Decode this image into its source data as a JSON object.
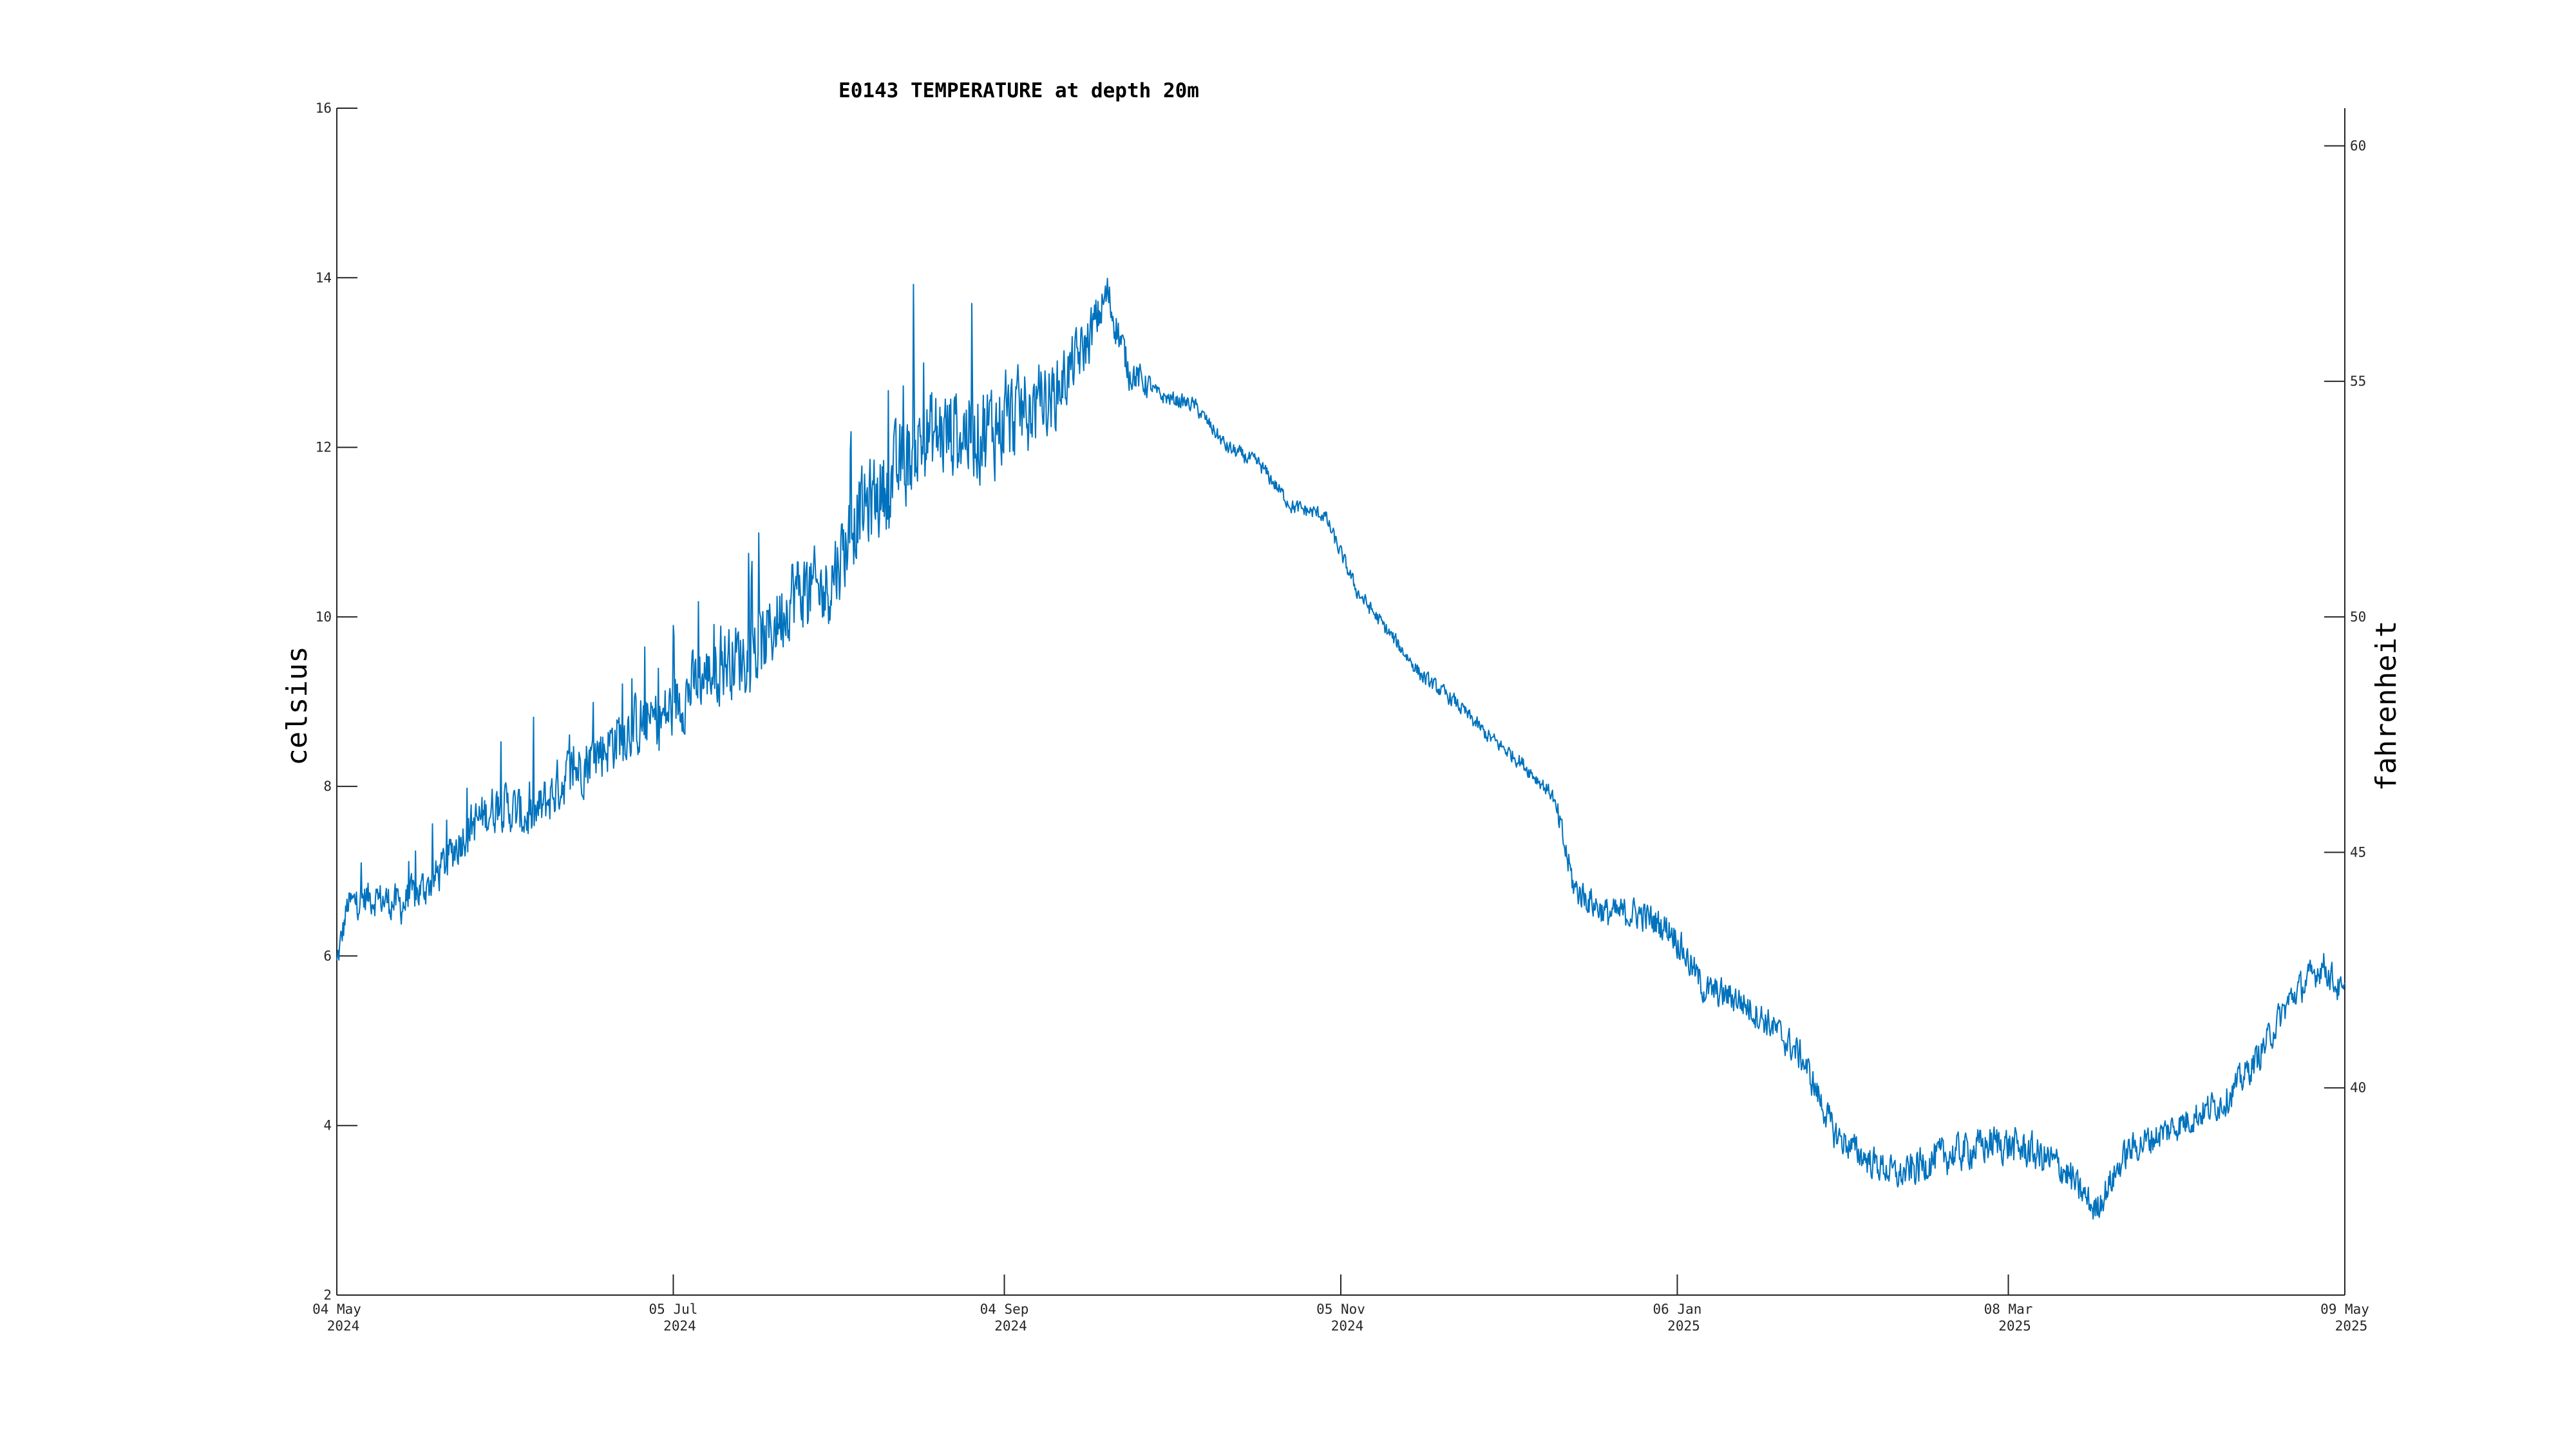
{
  "chart_data": {
    "type": "line",
    "title": "E0143 TEMPERATURE at depth 20m",
    "ylabel": "celsius",
    "ylabel_right": "fahrenheit",
    "xlabel": "",
    "x_range": [
      "2024-05-04",
      "2025-05-09"
    ],
    "ylim": [
      2,
      16
    ],
    "ylim_right": [
      35.6,
      60.8
    ],
    "grid": false,
    "line_color": "#0072BD",
    "y_ticks": [
      "2",
      "4",
      "6",
      "8",
      "10",
      "12",
      "14",
      "16"
    ],
    "y_right_ticks": [
      "40",
      "45",
      "50",
      "55",
      "60"
    ],
    "x_ticks": [
      {
        "date": "2024-05-04",
        "line1": "04 May",
        "line2": "2024"
      },
      {
        "date": "2024-07-05",
        "line1": "05 Jul",
        "line2": "2024"
      },
      {
        "date": "2024-09-04",
        "line1": "04 Sep",
        "line2": "2024"
      },
      {
        "date": "2024-11-05",
        "line1": "05 Nov",
        "line2": "2024"
      },
      {
        "date": "2025-01-06",
        "line1": "06 Jan",
        "line2": "2025"
      },
      {
        "date": "2025-03-08",
        "line1": "08 Mar",
        "line2": "2025"
      },
      {
        "date": "2025-05-09",
        "line1": "09 May",
        "line2": "2025"
      }
    ],
    "series": [
      {
        "values": [
          [
            "2024-05-04",
            5.9
          ],
          [
            "2024-05-06",
            6.6
          ],
          [
            "2024-05-10",
            6.7
          ],
          [
            "2024-05-16",
            6.6
          ],
          [
            "2024-05-22",
            6.9
          ],
          [
            "2024-05-28",
            7.5
          ],
          [
            "2024-06-03",
            7.8
          ],
          [
            "2024-06-09",
            7.6
          ],
          [
            "2024-06-15",
            8.1
          ],
          [
            "2024-06-21",
            8.4
          ],
          [
            "2024-06-27",
            8.7
          ],
          [
            "2024-07-03",
            8.8
          ],
          [
            "2024-07-09",
            9.2
          ],
          [
            "2024-07-15",
            9.5
          ],
          [
            "2024-07-21",
            9.6
          ],
          [
            "2024-07-27",
            10.3
          ],
          [
            "2024-08-02",
            10.3
          ],
          [
            "2024-08-08",
            11.2
          ],
          [
            "2024-08-14",
            11.6
          ],
          [
            "2024-08-20",
            12.1
          ],
          [
            "2024-08-26",
            12.2
          ],
          [
            "2024-09-01",
            12.2
          ],
          [
            "2024-09-07",
            12.4
          ],
          [
            "2024-09-13",
            12.6
          ],
          [
            "2024-09-19",
            13.2
          ],
          [
            "2024-09-23",
            13.8
          ],
          [
            "2024-09-27",
            12.9
          ],
          [
            "2024-10-03",
            12.6
          ],
          [
            "2024-10-09",
            12.5
          ],
          [
            "2024-10-15",
            12.0
          ],
          [
            "2024-10-21",
            11.8
          ],
          [
            "2024-10-27",
            11.3
          ],
          [
            "2024-11-02",
            11.2
          ],
          [
            "2024-11-08",
            10.3
          ],
          [
            "2024-11-14",
            9.8
          ],
          [
            "2024-11-20",
            9.3
          ],
          [
            "2024-11-26",
            9.0
          ],
          [
            "2024-12-02",
            8.6
          ],
          [
            "2024-12-08",
            8.3
          ],
          [
            "2024-12-14",
            7.9
          ],
          [
            "2024-12-18",
            6.8
          ],
          [
            "2024-12-24",
            6.5
          ],
          [
            "2024-12-30",
            6.5
          ],
          [
            "2025-01-05",
            6.3
          ],
          [
            "2025-01-11",
            5.6
          ],
          [
            "2025-01-17",
            5.5
          ],
          [
            "2025-01-23",
            5.2
          ],
          [
            "2025-01-29",
            4.8
          ],
          [
            "2025-02-04",
            3.9
          ],
          [
            "2025-02-10",
            3.6
          ],
          [
            "2025-02-16",
            3.4
          ],
          [
            "2025-02-22",
            3.6
          ],
          [
            "2025-02-28",
            3.7
          ],
          [
            "2025-03-06",
            3.8
          ],
          [
            "2025-03-12",
            3.7
          ],
          [
            "2025-03-18",
            3.5
          ],
          [
            "2025-03-24",
            3.0
          ],
          [
            "2025-03-30",
            3.7
          ],
          [
            "2025-04-05",
            3.9
          ],
          [
            "2025-04-11",
            4.1
          ],
          [
            "2025-04-17",
            4.3
          ],
          [
            "2025-04-23",
            4.8
          ],
          [
            "2025-04-29",
            5.5
          ],
          [
            "2025-05-05",
            5.9
          ],
          [
            "2025-05-09",
            5.5
          ]
        ]
      }
    ]
  }
}
